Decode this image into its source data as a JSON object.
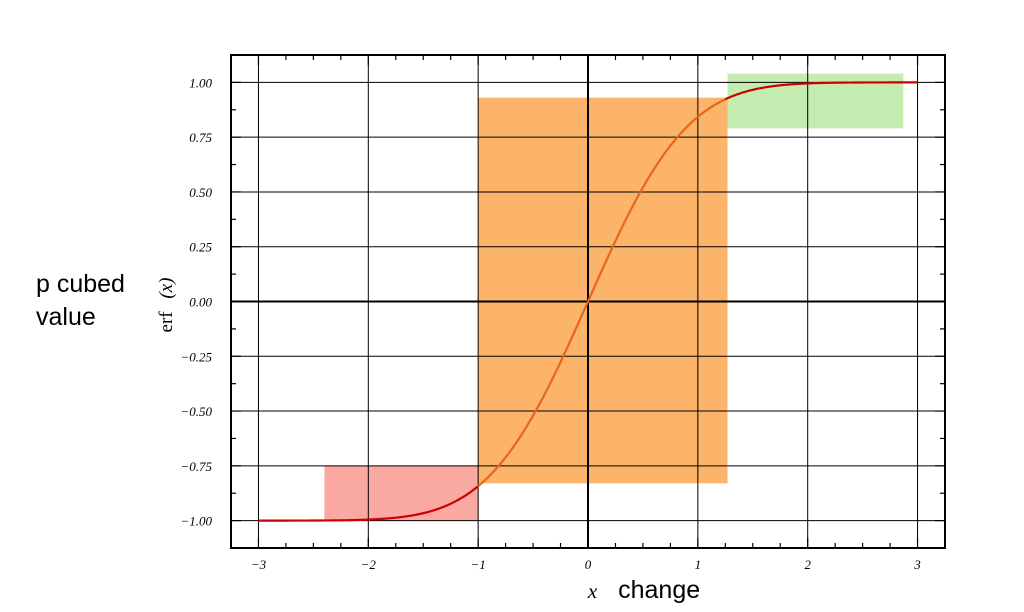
{
  "side_label": {
    "line1": "p cubed",
    "line2": "value"
  },
  "chart_data": {
    "type": "line",
    "title": "",
    "xlabel": {
      "italic": "x",
      "plain": "change"
    },
    "ylabel": {
      "plain": "erf",
      "italic": "(x)"
    },
    "xlim": [
      -3.25,
      3.25
    ],
    "ylim": [
      -1.125,
      1.125
    ],
    "xticks": [
      -3,
      -2,
      -1,
      0,
      1,
      2,
      3
    ],
    "xtick_labels": [
      "−3",
      "−2",
      "−1",
      "0",
      "1",
      "2",
      "3"
    ],
    "yticks": [
      1.0,
      0.75,
      0.5,
      0.25,
      0.0,
      -0.25,
      -0.5,
      -0.75,
      -1.0
    ],
    "ytick_labels": [
      "1.00",
      "0.75",
      "0.50",
      "0.25",
      "0.00",
      "−0.25",
      "−0.50",
      "−0.75",
      "−1.00"
    ],
    "grid": true,
    "series": [
      {
        "function": "erf(x)",
        "x_range": [
          -3,
          3
        ],
        "segments": [
          {
            "x_range": [
              -3,
              -1.0
            ],
            "color": "#cc0000"
          },
          {
            "x_range": [
              -1.0,
              1.25
            ],
            "color": "#e8661c"
          },
          {
            "x_range": [
              1.25,
              3
            ],
            "color": "#cc0000"
          }
        ]
      }
    ],
    "regions": [
      {
        "x": [
          -2.4,
          -1.0
        ],
        "y": [
          -1.0,
          -0.75
        ],
        "color": "#f9a8a2"
      },
      {
        "x": [
          -1.0,
          1.27
        ],
        "y": [
          -0.83,
          0.93
        ],
        "color": "#fbb46a"
      },
      {
        "x": [
          1.27,
          2.87
        ],
        "y": [
          0.79,
          1.04
        ],
        "color": "#c4ecb0"
      }
    ]
  }
}
